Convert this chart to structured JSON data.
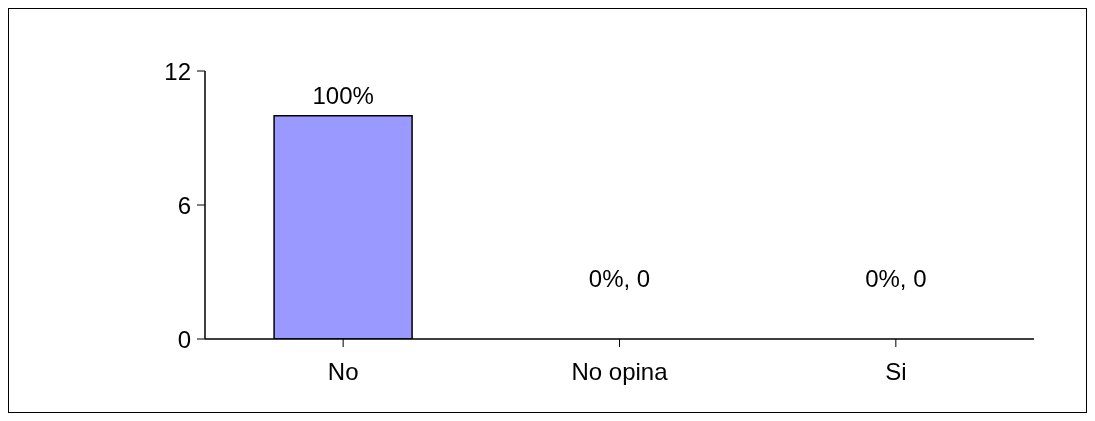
{
  "chart_data": {
    "type": "bar",
    "categories": [
      "No",
      "No opina",
      "Si"
    ],
    "values": [
      10,
      0,
      0
    ],
    "color": "#9999ff",
    "value_labels": [
      null,
      "0%, 0",
      "0%, 0"
    ],
    "annotations": [
      {
        "text": "100%",
        "x": "No",
        "y": 10
      }
    ],
    "ylim": [
      0,
      12
    ],
    "yticks": [
      0,
      6,
      12
    ],
    "grid": false,
    "legend": false
  }
}
